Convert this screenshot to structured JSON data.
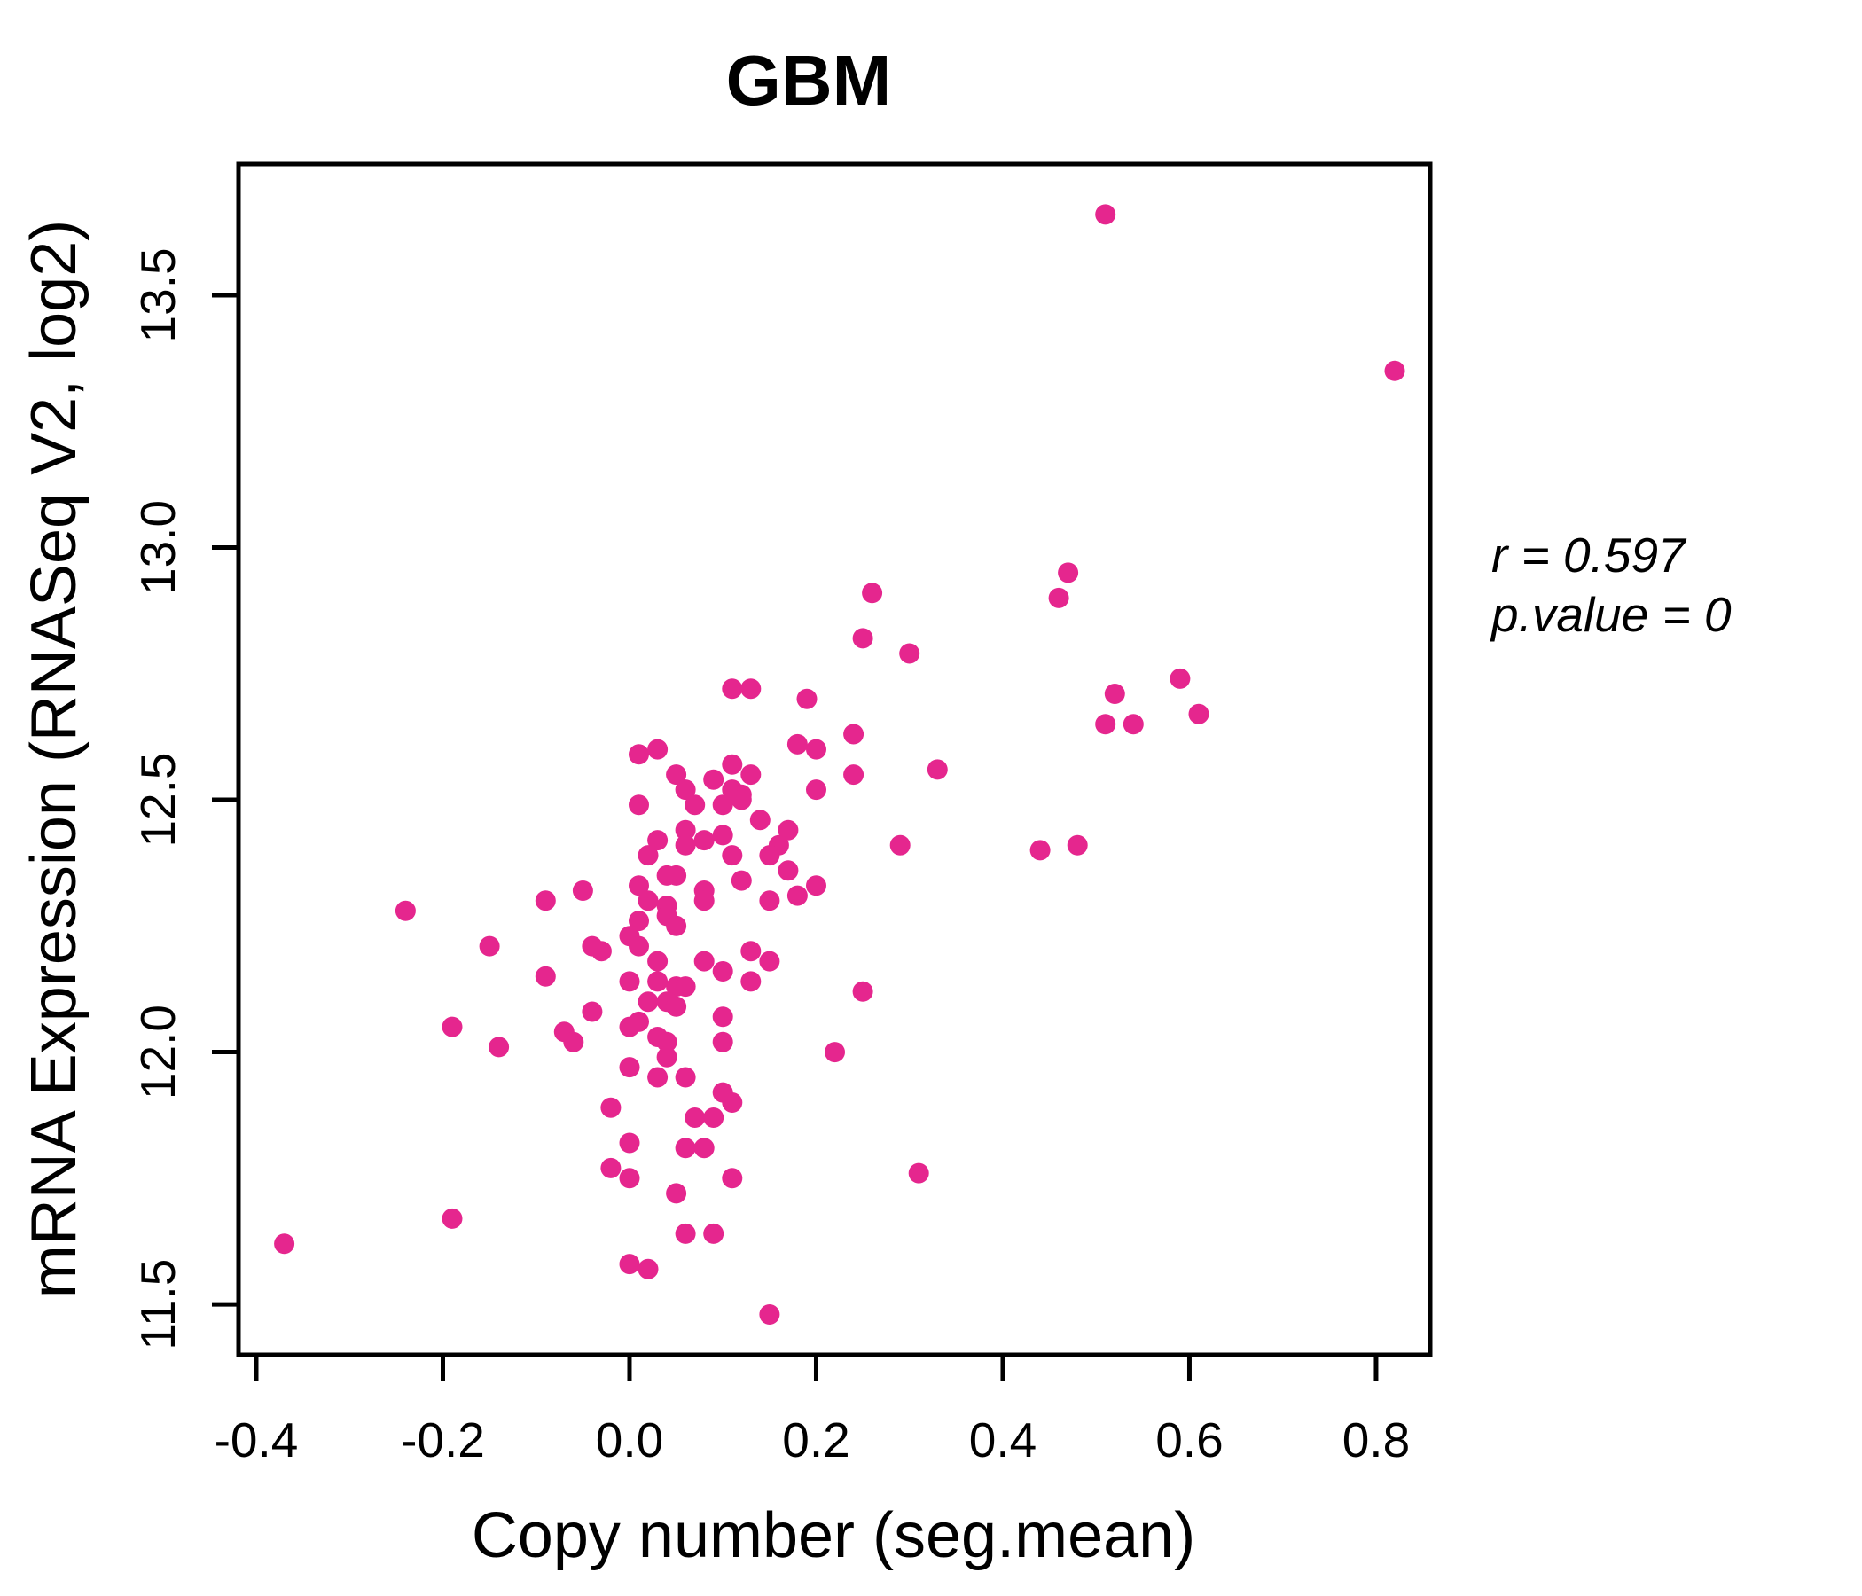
{
  "figure": {
    "background": "#ffffff",
    "accent_pink": "#E5268E",
    "text_black": "#000000"
  },
  "chart_data": {
    "type": "scatter",
    "title": "GBM",
    "title_color": "#E5268E",
    "xlabel": "Copy number (seg.mean)",
    "ylabel": "mRNA Expression (RNASeq V2, log2)",
    "point_color": "#E5268E",
    "point_radius_px": 11.5,
    "grid": false,
    "legend": "none",
    "xlim": [
      -0.419,
      0.858
    ],
    "ylim": [
      11.4,
      13.76
    ],
    "x_ticks": {
      "values": [
        -0.4,
        -0.2,
        0.0,
        0.2,
        0.4,
        0.6,
        0.8
      ],
      "labels": [
        "-0.4",
        "-0.2",
        "0.0",
        "0.2",
        "0.4",
        "0.6",
        "0.8"
      ]
    },
    "y_ticks": {
      "values": [
        11.5,
        12.0,
        12.5,
        13.0,
        13.5
      ],
      "labels": [
        "11.5",
        "12.0",
        "12.5",
        "13.0",
        "13.5"
      ]
    },
    "annotation": {
      "r": 0.597,
      "p_value": 0,
      "r_label": "r = 0.597",
      "p_label": "p.value = 0"
    },
    "points": [
      [
        0.51,
        13.66
      ],
      [
        0.82,
        13.35
      ],
      [
        0.47,
        12.95
      ],
      [
        0.46,
        12.9
      ],
      [
        0.26,
        12.91
      ],
      [
        0.25,
        12.82
      ],
      [
        0.3,
        12.79
      ],
      [
        0.59,
        12.74
      ],
      [
        0.61,
        12.67
      ],
      [
        0.52,
        12.71
      ],
      [
        0.51,
        12.65
      ],
      [
        0.54,
        12.65
      ],
      [
        0.11,
        12.72
      ],
      [
        0.13,
        12.72
      ],
      [
        0.19,
        12.7
      ],
      [
        0.24,
        12.63
      ],
      [
        0.18,
        12.61
      ],
      [
        0.2,
        12.6
      ],
      [
        0.01,
        12.59
      ],
      [
        0.03,
        12.6
      ],
      [
        0.05,
        12.55
      ],
      [
        0.06,
        12.52
      ],
      [
        0.09,
        12.54
      ],
      [
        0.11,
        12.57
      ],
      [
        0.13,
        12.55
      ],
      [
        0.24,
        12.55
      ],
      [
        0.2,
        12.52
      ],
      [
        0.11,
        12.52
      ],
      [
        0.12,
        12.51
      ],
      [
        0.33,
        12.56
      ],
      [
        0.01,
        12.49
      ],
      [
        0.07,
        12.49
      ],
      [
        0.1,
        12.49
      ],
      [
        0.12,
        12.5
      ],
      [
        0.14,
        12.46
      ],
      [
        0.17,
        12.44
      ],
      [
        0.06,
        12.44
      ],
      [
        0.1,
        12.43
      ],
      [
        0.03,
        12.42
      ],
      [
        0.08,
        12.42
      ],
      [
        0.06,
        12.41
      ],
      [
        0.16,
        12.41
      ],
      [
        0.29,
        12.41
      ],
      [
        0.44,
        12.4
      ],
      [
        0.48,
        12.41
      ],
      [
        0.02,
        12.39
      ],
      [
        0.11,
        12.39
      ],
      [
        0.15,
        12.39
      ],
      [
        0.17,
        12.36
      ],
      [
        0.04,
        12.35
      ],
      [
        0.05,
        12.35
      ],
      [
        0.01,
        12.33
      ],
      [
        0.12,
        12.34
      ],
      [
        0.2,
        12.33
      ],
      [
        0.08,
        12.32
      ],
      [
        0.18,
        12.31
      ],
      [
        0.02,
        12.3
      ],
      [
        0.08,
        12.3
      ],
      [
        0.15,
        12.3
      ],
      [
        0.04,
        12.29
      ],
      [
        -0.24,
        12.28
      ],
      [
        -0.09,
        12.3
      ],
      [
        -0.05,
        12.32
      ],
      [
        0.04,
        12.27
      ],
      [
        0.01,
        12.26
      ],
      [
        0.05,
        12.25
      ],
      [
        0.0,
        12.23
      ],
      [
        -0.04,
        12.21
      ],
      [
        -0.03,
        12.2
      ],
      [
        -0.15,
        12.21
      ],
      [
        0.01,
        12.21
      ],
      [
        -0.09,
        12.15
      ],
      [
        0.03,
        12.18
      ],
      [
        0.08,
        12.18
      ],
      [
        0.13,
        12.2
      ],
      [
        0.15,
        12.18
      ],
      [
        0.1,
        12.16
      ],
      [
        0.0,
        12.14
      ],
      [
        0.03,
        12.14
      ],
      [
        0.13,
        12.14
      ],
      [
        0.05,
        12.13
      ],
      [
        0.06,
        12.13
      ],
      [
        0.25,
        12.12
      ],
      [
        0.02,
        12.1
      ],
      [
        0.04,
        12.1
      ],
      [
        0.05,
        12.09
      ],
      [
        -0.04,
        12.08
      ],
      [
        0.1,
        12.07
      ],
      [
        -0.19,
        12.05
      ],
      [
        0.0,
        12.05
      ],
      [
        0.01,
        12.06
      ],
      [
        -0.07,
        12.04
      ],
      [
        -0.06,
        12.02
      ],
      [
        0.03,
        12.03
      ],
      [
        0.04,
        12.02
      ],
      [
        0.1,
        12.02
      ],
      [
        -0.14,
        12.01
      ],
      [
        0.22,
        12.0
      ],
      [
        0.04,
        11.99
      ],
      [
        0.0,
        11.97
      ],
      [
        0.03,
        11.95
      ],
      [
        0.06,
        11.95
      ],
      [
        0.1,
        11.92
      ],
      [
        0.11,
        11.9
      ],
      [
        -0.02,
        11.89
      ],
      [
        0.07,
        11.87
      ],
      [
        0.09,
        11.87
      ],
      [
        0.0,
        11.82
      ],
      [
        0.06,
        11.81
      ],
      [
        0.08,
        11.81
      ],
      [
        -0.02,
        11.77
      ],
      [
        0.0,
        11.75
      ],
      [
        0.11,
        11.75
      ],
      [
        0.31,
        11.76
      ],
      [
        0.05,
        11.72
      ],
      [
        -0.19,
        11.67
      ],
      [
        0.06,
        11.64
      ],
      [
        0.09,
        11.64
      ],
      [
        -0.37,
        11.62
      ],
      [
        0.0,
        11.58
      ],
      [
        0.02,
        11.57
      ],
      [
        0.15,
        11.48
      ]
    ]
  }
}
